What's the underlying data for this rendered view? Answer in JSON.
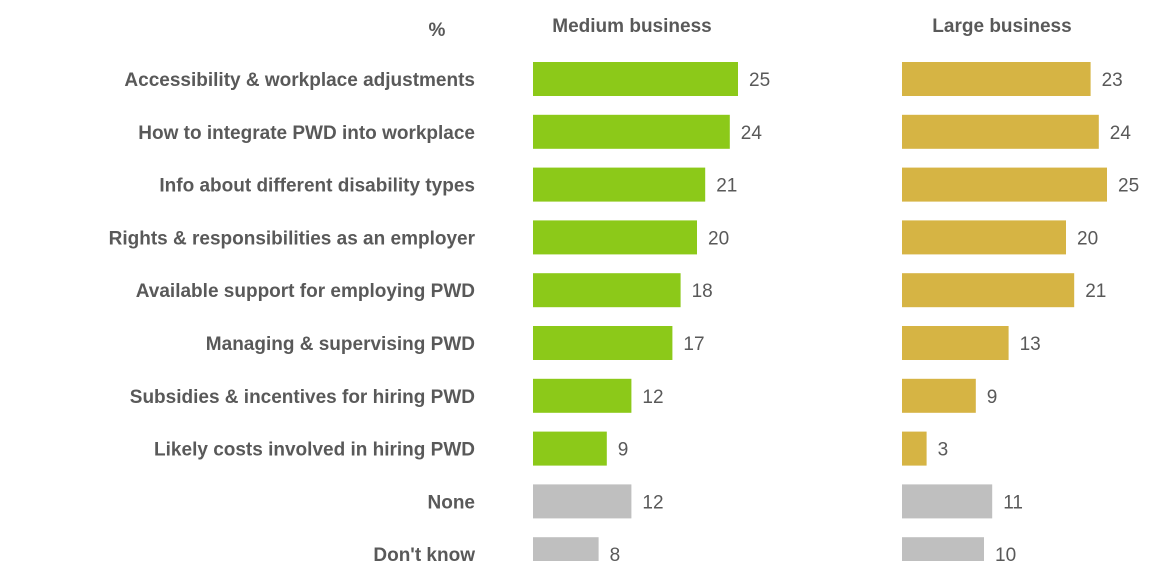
{
  "chart_data": {
    "type": "bar",
    "orientation": "horizontal",
    "unit_label": "%",
    "categories": [
      "Accessibility & workplace adjustments",
      "How to integrate PWD into workplace",
      "Info about different disability types",
      "Rights & responsibilities as an employer",
      "Available support for employing PWD",
      "Managing & supervising PWD",
      "Subsidies & incentives for hiring PWD",
      "Likely costs involved in hiring PWD",
      "None",
      "Don't know"
    ],
    "series": [
      {
        "name": "Medium business",
        "color": "#8cc919",
        "other_color": "#bfbfbf",
        "values": [
          25,
          24,
          21,
          20,
          18,
          17,
          12,
          9,
          12,
          8
        ]
      },
      {
        "name": "Large business",
        "color": "#d6b444",
        "other_color": "#bfbfbf",
        "values": [
          23,
          24,
          25,
          20,
          21,
          13,
          9,
          3,
          11,
          10
        ]
      }
    ],
    "neutral_categories": [
      "None",
      "Don't know"
    ],
    "xlim": [
      0,
      25
    ],
    "grid": false,
    "legend": "none"
  }
}
